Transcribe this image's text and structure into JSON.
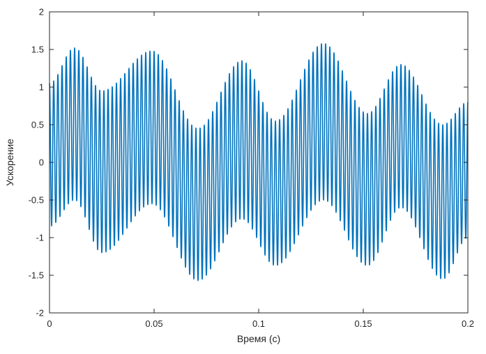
{
  "chart_data": {
    "type": "line",
    "title": "",
    "xlabel": "Время (с)",
    "ylabel": "Ускорение",
    "xlim": [
      0,
      0.2
    ],
    "ylim": [
      -2,
      2
    ],
    "xticks": [
      0,
      0.05,
      0.1,
      0.15,
      0.2
    ],
    "xtick_labels": [
      "0",
      "0.05",
      "0.1",
      "0.15",
      "0.2"
    ],
    "yticks": [
      -2,
      -1.5,
      -1,
      -0.5,
      0,
      0.5,
      1,
      1.5,
      2
    ],
    "ytick_labels": [
      "-2",
      "-1.5",
      "-1",
      "-0.5",
      "0",
      "0.5",
      "1",
      "1.5",
      "2"
    ],
    "grid": false,
    "line_color": "#0072BD",
    "series": [
      {
        "description_of_signal": "high-frequency oscillation (~500 Hz) whose amplitude is modulated by a slow envelope",
        "carrier_frequency_hz": 500,
        "envelope": {
          "t": [
            0,
            0.012,
            0.025,
            0.049,
            0.071,
            0.092,
            0.108,
            0.131,
            0.152,
            0.168,
            0.188,
            0.2
          ],
          "upper": [
            1.05,
            1.52,
            0.95,
            1.48,
            0.45,
            1.35,
            0.55,
            1.58,
            0.65,
            1.3,
            0.5,
            0.8
          ],
          "lower": [
            -0.85,
            -0.5,
            -1.2,
            -0.55,
            -1.57,
            -0.75,
            -1.37,
            -0.5,
            -1.37,
            -0.6,
            -1.55,
            -1.0
          ]
        }
      }
    ]
  }
}
